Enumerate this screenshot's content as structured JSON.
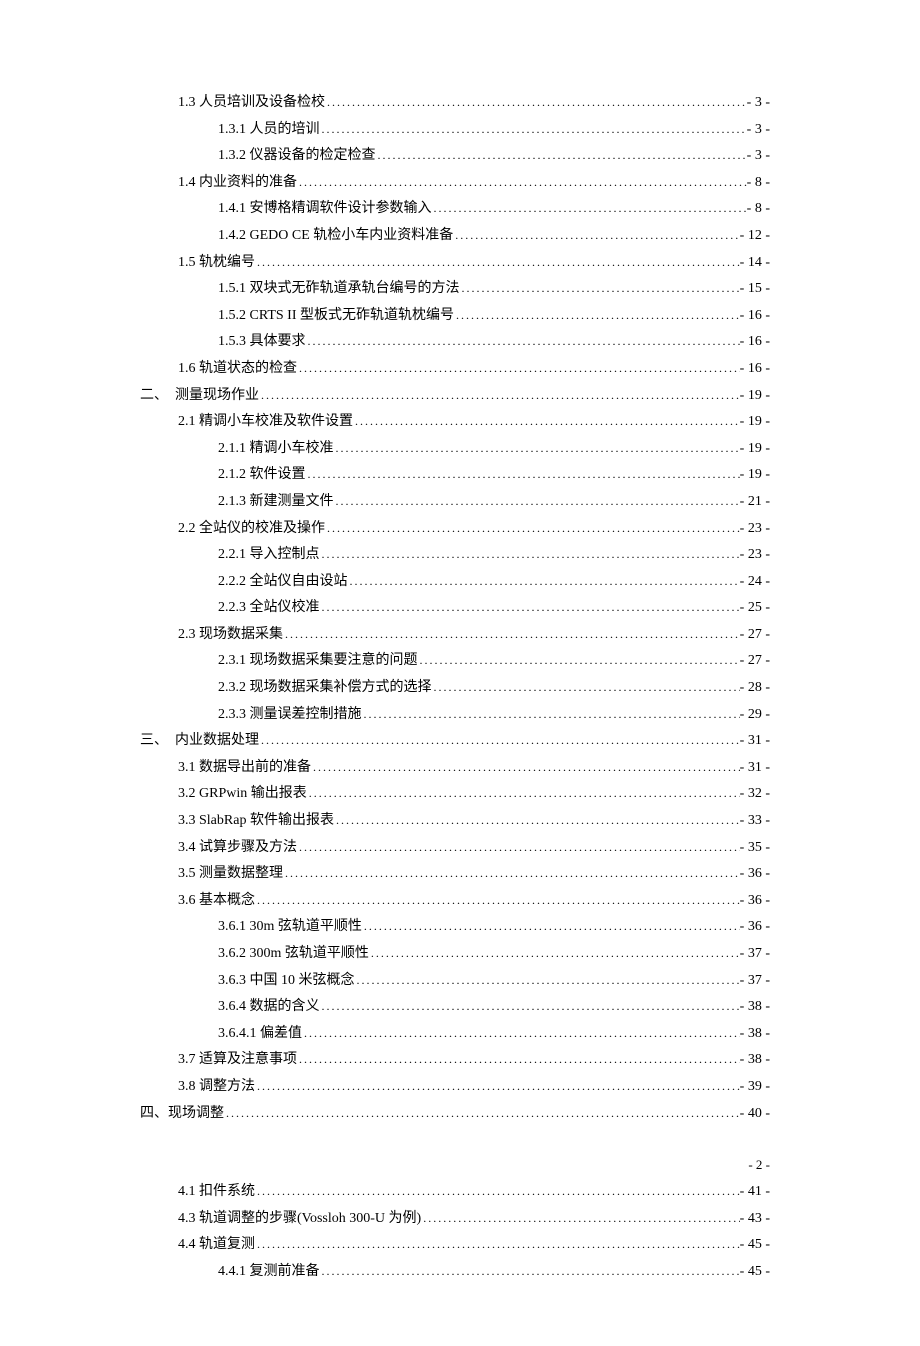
{
  "page_footer": "- 2 -",
  "entries": [
    {
      "indent": 1,
      "label": "1.3 人员培训及设备检校",
      "page": "- 3 -",
      "block": 1
    },
    {
      "indent": 2,
      "label": "1.3.1 人员的培训",
      "page": "- 3 -",
      "block": 1
    },
    {
      "indent": 2,
      "label": "1.3.2 仪器设备的检定检查",
      "page": "- 3 -",
      "block": 1
    },
    {
      "indent": 1,
      "label": "1.4 内业资料的准备",
      "page": "- 8 -",
      "block": 1
    },
    {
      "indent": 2,
      "label": "1.4.1 安博格精调软件设计参数输入",
      "page": "- 8 -",
      "block": 1
    },
    {
      "indent": 2,
      "label": "1.4.2 GEDO CE 轨检小车内业资料准备",
      "page": "- 12 -",
      "block": 1
    },
    {
      "indent": 1,
      "label": "1.5 轨枕编号",
      "page": "- 14 -",
      "block": 1
    },
    {
      "indent": 2,
      "label": "1.5.1 双块式无砟轨道承轨台编号的方法",
      "page": "- 15 -",
      "block": 1
    },
    {
      "indent": 2,
      "label": "1.5.2 CRTS II 型板式无砟轨道轨枕编号",
      "page": "- 16 -",
      "block": 1
    },
    {
      "indent": 2,
      "label": "1.5.3 具体要求",
      "page": "- 16 -",
      "block": 1
    },
    {
      "indent": 1,
      "label": "1.6 轨道状态的检查",
      "page": "- 16 -",
      "block": 1
    },
    {
      "indent": 0,
      "label": "二、　测量现场作业",
      "page": "- 19 -",
      "block": 1
    },
    {
      "indent": 1,
      "label": "2.1 精调小车校准及软件设置",
      "page": "- 19 -",
      "block": 1
    },
    {
      "indent": 2,
      "label": "2.1.1 精调小车校准",
      "page": "- 19 -",
      "block": 1
    },
    {
      "indent": 2,
      "label": "2.1.2 软件设置",
      "page": "- 19 -",
      "block": 1
    },
    {
      "indent": 2,
      "label": "2.1.3 新建测量文件",
      "page": "- 21 -",
      "block": 1
    },
    {
      "indent": 1,
      "label": "2.2 全站仪的校准及操作",
      "page": "- 23 -",
      "block": 1
    },
    {
      "indent": 2,
      "label": "2.2.1 导入控制点",
      "page": "- 23 -",
      "block": 1
    },
    {
      "indent": 2,
      "label": "2.2.2 全站仪自由设站",
      "page": "- 24 -",
      "block": 1
    },
    {
      "indent": 2,
      "label": "2.2.3 全站仪校准",
      "page": "- 25 -",
      "block": 1
    },
    {
      "indent": 1,
      "label": "2.3 现场数据采集",
      "page": "- 27 -",
      "block": 1
    },
    {
      "indent": 2,
      "label": "2.3.1 现场数据采集要注意的问题",
      "page": "- 27 -",
      "block": 1
    },
    {
      "indent": 2,
      "label": "2.3.2 现场数据采集补偿方式的选择",
      "page": "- 28 -",
      "block": 1
    },
    {
      "indent": 2,
      "label": "2.3.3 测量误差控制措施",
      "page": "- 29 -",
      "block": 1
    },
    {
      "indent": 0,
      "label": "三、　内业数据处理",
      "page": "- 31 -",
      "block": 1
    },
    {
      "indent": 1,
      "label": "3.1 数据导出前的准备",
      "page": "- 31 -",
      "block": 1
    },
    {
      "indent": 1,
      "label": "3.2 GRPwin 输出报表",
      "page": "- 32 -",
      "block": 1
    },
    {
      "indent": 1,
      "label": "3.3 SlabRap 软件输出报表",
      "page": "- 33 -",
      "block": 1
    },
    {
      "indent": 1,
      "label": "3.4 试算步骤及方法",
      "page": "- 35 -",
      "block": 1
    },
    {
      "indent": 1,
      "label": "3.5 测量数据整理",
      "page": "- 36 -",
      "block": 1
    },
    {
      "indent": 1,
      "label": "3.6 基本概念",
      "page": "- 36 -",
      "block": 1
    },
    {
      "indent": 2,
      "label": "3.6.1 30m 弦轨道平顺性",
      "page": "- 36 -",
      "block": 1
    },
    {
      "indent": 2,
      "label": "3.6.2 300m 弦轨道平顺性",
      "page": "- 37 -",
      "block": 1
    },
    {
      "indent": 2,
      "label": "3.6.3 中国 10 米弦概念",
      "page": "- 37 -",
      "block": 1
    },
    {
      "indent": 2,
      "label": "3.6.4 数据的含义",
      "page": "- 38 -",
      "block": 1
    },
    {
      "indent": 2,
      "label": "3.6.4.1 偏差值",
      "page": "- 38 -",
      "block": 1
    },
    {
      "indent": 1,
      "label": "3.7 适算及注意事项",
      "page": "- 38 -",
      "block": 1
    },
    {
      "indent": 1,
      "label": "3.8 调整方法",
      "page": "- 39 -",
      "block": 1
    },
    {
      "indent": 0,
      "label": "四、现场调整 ",
      "page": "- 40 -",
      "block": 1
    },
    {
      "indent": 1,
      "label": "4.1 扣件系统",
      "page": "- 41 -",
      "block": 2
    },
    {
      "indent": 1,
      "label": "4.3 轨道调整的步骤(Vossloh 300-U 为例)",
      "page": "- 43 -",
      "block": 2
    },
    {
      "indent": 1,
      "label": "4.4 轨道复测",
      "page": "- 45 -",
      "block": 2
    },
    {
      "indent": 2,
      "label": "4.4.1 复测前准备",
      "page": "- 45 -",
      "block": 2
    }
  ]
}
